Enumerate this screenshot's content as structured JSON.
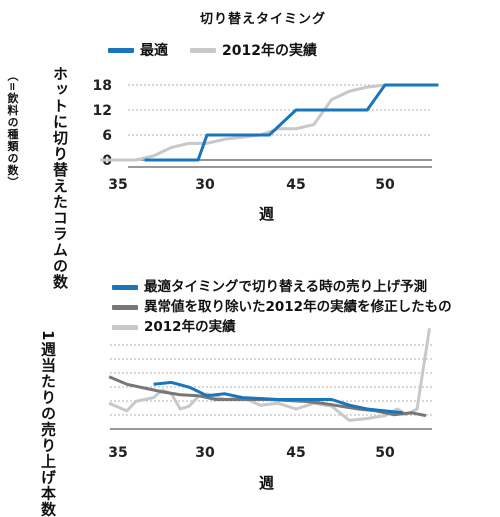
{
  "chart_data": [
    {
      "type": "line",
      "title": "切り替えタイミング",
      "xlabel": "週",
      "ylabel": "ホットに切り替えたコラムの数",
      "ylabel_note": "（=飲料の種類の数）",
      "xticks": [
        "35",
        "30",
        "45",
        "50"
      ],
      "yticks": [
        "0",
        "6",
        "12",
        "18"
      ],
      "ylim": [
        0,
        18
      ],
      "grid": "horizontal dashed",
      "legend_position": "top",
      "series": [
        {
          "name": "最適",
          "color": "#1a75bb",
          "points": [
            [
              36.5,
              0
            ],
            [
              39.5,
              0
            ],
            [
              40,
              6
            ],
            [
              43.5,
              6
            ],
            [
              45,
              12
            ],
            [
              49,
              12
            ],
            [
              50,
              18
            ],
            [
              53,
              18
            ]
          ]
        },
        {
          "name": "2012年の実績",
          "color": "#c8c8c8",
          "points": [
            [
              34,
              0
            ],
            [
              36,
              0
            ],
            [
              37,
              1
            ],
            [
              38,
              3
            ],
            [
              39,
              4
            ],
            [
              40,
              4
            ],
            [
              41,
              5
            ],
            [
              42,
              5.5
            ],
            [
              43,
              6
            ],
            [
              44,
              7.5
            ],
            [
              45,
              7.5
            ],
            [
              46,
              8.5
            ],
            [
              47,
              14.5
            ],
            [
              48,
              16.5
            ],
            [
              49,
              17.5
            ],
            [
              50,
              18
            ],
            [
              53,
              18
            ]
          ]
        }
      ]
    },
    {
      "type": "line",
      "xlabel": "週",
      "ylabel": "1週当たりの売り上げ本数",
      "xticks": [
        "35",
        "30",
        "45",
        "50"
      ],
      "grid": "horizontal dashed",
      "legend_position": "top",
      "series": [
        {
          "name": "最適タイミングで切り替える時の売り上げ予測",
          "color": "#1a75bb",
          "points": [
            [
              37,
              4.6
            ],
            [
              38,
              4.8
            ],
            [
              39,
              4.3
            ],
            [
              40,
              3.4
            ],
            [
              41,
              3.6
            ],
            [
              42,
              3.2
            ],
            [
              43,
              3.1
            ],
            [
              44,
              3.0
            ],
            [
              45,
              3.0
            ],
            [
              46,
              3.0
            ],
            [
              47,
              3.0
            ],
            [
              48,
              2.4
            ],
            [
              49,
              2.0
            ],
            [
              50,
              1.8
            ],
            [
              51,
              1.6
            ]
          ]
        },
        {
          "name": "異常値を取り除いた2012年の実績を修正したもの",
          "color": "#777777",
          "points": [
            [
              34.5,
              5.4
            ],
            [
              35.5,
              4.6
            ],
            [
              36.5,
              4.2
            ],
            [
              37.5,
              3.8
            ],
            [
              38.5,
              3.5
            ],
            [
              39.5,
              3.4
            ],
            [
              40.5,
              3.0
            ],
            [
              41.5,
              3.0
            ],
            [
              42.5,
              3.0
            ],
            [
              43.5,
              3.0
            ],
            [
              44.5,
              2.9
            ],
            [
              45.5,
              2.8
            ],
            [
              46.5,
              2.6
            ],
            [
              47.5,
              2.3
            ],
            [
              48.5,
              2.0
            ],
            [
              49.5,
              1.8
            ],
            [
              50.5,
              1.4
            ],
            [
              51.5,
              1.6
            ],
            [
              52.3,
              1.3
            ]
          ]
        },
        {
          "name": "2012年の実績",
          "color": "#c8c8c8",
          "points": [
            [
              34.5,
              2.6
            ],
            [
              35.5,
              1.8
            ],
            [
              36,
              2.8
            ],
            [
              37,
              3.2
            ],
            [
              37.5,
              4.0
            ],
            [
              38,
              3.6
            ],
            [
              38.5,
              2.0
            ],
            [
              39,
              2.3
            ],
            [
              39.5,
              3.3
            ],
            [
              40,
              3.6
            ],
            [
              41,
              3.0
            ],
            [
              42,
              3.2
            ],
            [
              43,
              2.4
            ],
            [
              44,
              2.6
            ],
            [
              45,
              2.0
            ],
            [
              46,
              2.6
            ],
            [
              47,
              2.3
            ],
            [
              48,
              0.8
            ],
            [
              49,
              1.0
            ],
            [
              50,
              1.3
            ],
            [
              50.7,
              2.0
            ],
            [
              51.2,
              1.4
            ],
            [
              51.8,
              2.0
            ],
            [
              52.5,
              10.5
            ]
          ]
        }
      ]
    }
  ]
}
